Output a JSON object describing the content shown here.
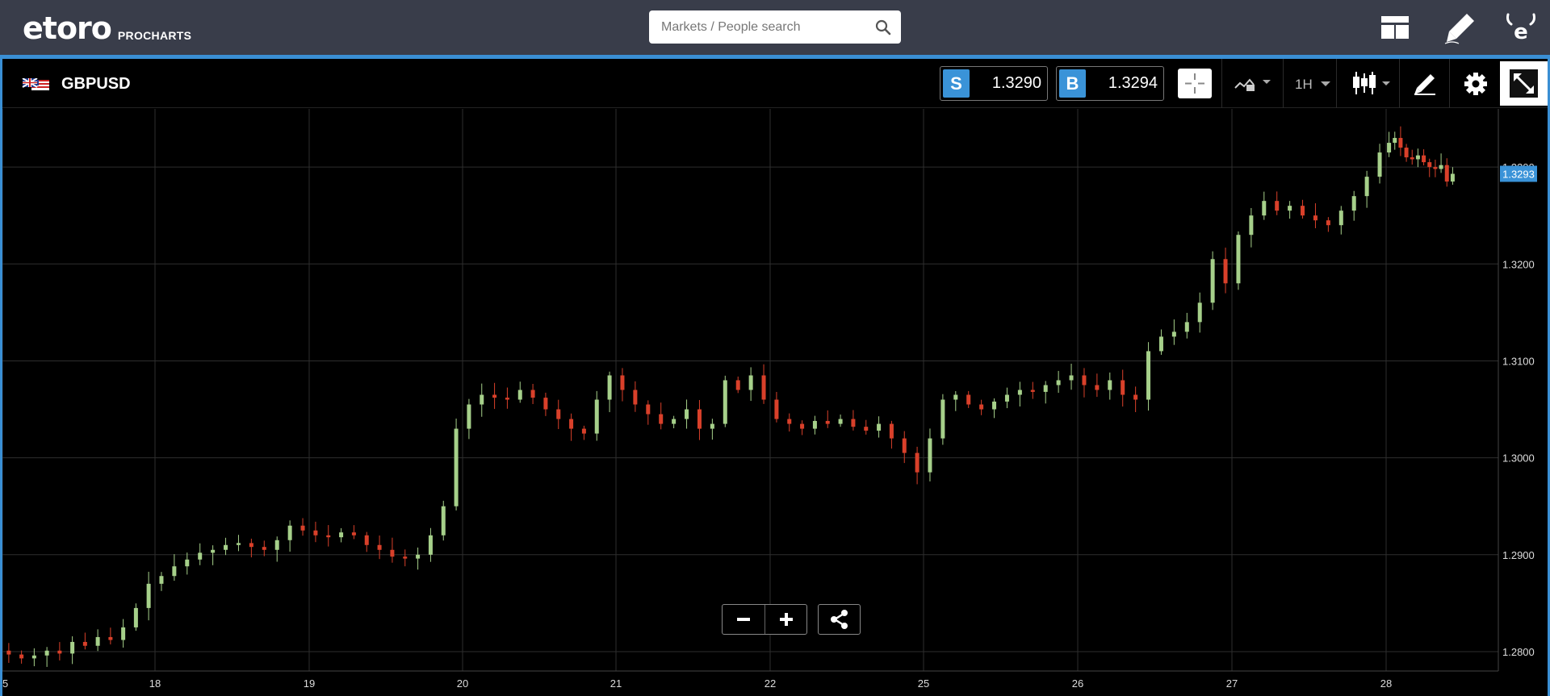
{
  "app": {
    "brand": "eToro",
    "logo_text": "etoro",
    "product": "PROCHARTS"
  },
  "search": {
    "placeholder": "Markets / People search"
  },
  "topbar_icons": [
    "layout-icon",
    "pencil-icon",
    "user-menu-icon"
  ],
  "instrument": {
    "symbol": "GBPUSD",
    "flag_icon": "gb-us-flag-icon"
  },
  "quotes": {
    "sell": {
      "label": "S",
      "value": "1.3290"
    },
    "buy": {
      "label": "B",
      "value": "1.3294"
    }
  },
  "toolbar": {
    "timeframe": "1H",
    "icons": [
      "crosshair-icon",
      "compare-icon",
      "candlestick-icon",
      "draw-tools-icon",
      "settings-icon",
      "fullscreen-icon"
    ]
  },
  "zoom_controls": [
    "zoom-out-icon",
    "zoom-in-icon",
    "share-icon"
  ],
  "colors": {
    "accent": "#3a8fd4",
    "up": "#a6d08a",
    "down": "#d9402a",
    "topbar": "#393d4a"
  },
  "chart_data": {
    "type": "candlestick",
    "title": "",
    "xlabel": "",
    "ylabel": "",
    "x_ticks": [
      "5",
      "18",
      "19",
      "20",
      "21",
      "22",
      "25",
      "26",
      "27",
      "28"
    ],
    "y_ticks": [
      "1.2800",
      "1.2900",
      "1.3000",
      "1.3100",
      "1.3200",
      "1.3300"
    ],
    "ylim": [
      1.278,
      1.336
    ],
    "current_price": "1.3293",
    "grid": true,
    "days": [
      {
        "label": "5",
        "closes": [
          1.2797,
          1.2793,
          1.2796,
          1.2801,
          1.2798,
          1.281,
          1.2806,
          1.2815,
          1.2812,
          1.2825,
          1.2845,
          1.287
        ]
      },
      {
        "label": "18",
        "closes": [
          1.2878,
          1.2888,
          1.2895,
          1.2902,
          1.2905,
          1.291,
          1.2912,
          1.2908,
          1.2905,
          1.2915,
          1.293,
          1.2925
        ]
      },
      {
        "label": "19",
        "closes": [
          1.292,
          1.2918,
          1.2923,
          1.292,
          1.291,
          1.2905,
          1.2898,
          1.2896,
          1.29,
          1.292,
          1.295,
          1.303
        ]
      },
      {
        "label": "20",
        "closes": [
          1.3055,
          1.3065,
          1.3062,
          1.306,
          1.307,
          1.3062,
          1.305,
          1.304,
          1.303,
          1.3025,
          1.306,
          1.3085
        ]
      },
      {
        "label": "21",
        "closes": [
          1.307,
          1.3055,
          1.3045,
          1.3035,
          1.304,
          1.305,
          1.303,
          1.3035,
          1.308,
          1.307,
          1.3085,
          1.306
        ]
      },
      {
        "label": "22",
        "closes": [
          1.304,
          1.3035,
          1.303,
          1.3038,
          1.3035,
          1.304,
          1.3032,
          1.3028,
          1.3035,
          1.302,
          1.3005,
          1.2985
        ]
      },
      {
        "label": "25",
        "closes": [
          1.302,
          1.306,
          1.3065,
          1.3055,
          1.305,
          1.3058,
          1.3065,
          1.307,
          1.3068,
          1.3075,
          1.308,
          1.3085
        ]
      },
      {
        "label": "26",
        "closes": [
          1.3075,
          1.307,
          1.308,
          1.3065,
          1.306,
          1.311,
          1.3125,
          1.313,
          1.314,
          1.316,
          1.3205,
          1.318
        ]
      },
      {
        "label": "27",
        "closes": [
          1.323,
          1.325,
          1.3265,
          1.3255,
          1.326,
          1.325,
          1.3245,
          1.324,
          1.3255,
          1.327,
          1.329,
          1.3315
        ]
      },
      {
        "label": "28",
        "closes": [
          1.3325,
          1.333,
          1.332,
          1.331,
          1.3308,
          1.3312,
          1.3305,
          1.33,
          1.3298,
          1.3302,
          1.3285,
          1.3293
        ]
      }
    ]
  }
}
